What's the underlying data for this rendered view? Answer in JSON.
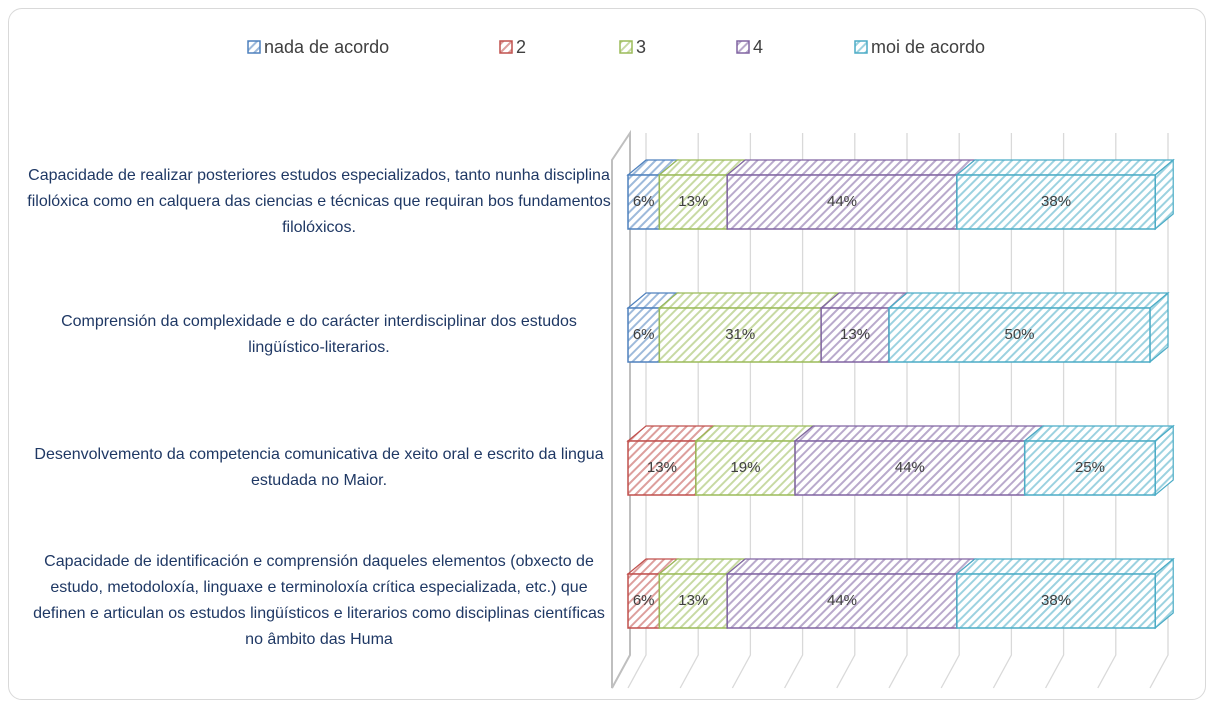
{
  "chart_data": {
    "type": "stacked-bar-3d",
    "orientation": "horizontal",
    "categories": [
      "Capacidade de realizar posteriores estudos especializados, tanto nunha disciplina filolóxica como en calquera das ciencias e técnicas que requiran bos fundamentos filolóxicos.",
      "Comprensión da complexidade e do carácter interdisciplinar dos estudos lingüístico-literarios.",
      "Desenvolvemento da competencia comunicativa de xeito oral e escrito da lingua estudada no Maior.",
      "Capacidade de identificación e comprensión daqueles elementos (obxecto de estudo, metodoloxía, linguaxe e terminoloxía crítica especializada, etc.) que definen e articulan os estudos lingüísticos e literarios como disciplinas científicas no âmbito das Huma"
    ],
    "series": [
      {
        "name": "nada de acordo",
        "color": "#4f81bd",
        "values": [
          6,
          6,
          0,
          0
        ],
        "value_labels": [
          "6%",
          "6%",
          null,
          null
        ]
      },
      {
        "name": "2",
        "color": "#c0504d",
        "values": [
          0,
          0,
          13,
          6
        ],
        "value_labels": [
          null,
          null,
          "13%",
          "6%"
        ]
      },
      {
        "name": "3",
        "color": "#9bbb59",
        "values": [
          13,
          31,
          19,
          13
        ],
        "value_labels": [
          "13%",
          "31%",
          "19%",
          "13%"
        ]
      },
      {
        "name": "4",
        "color": "#8064a2",
        "values": [
          44,
          13,
          44,
          44
        ],
        "value_labels": [
          "44%",
          "13%",
          "44%",
          "44%"
        ]
      },
      {
        "name": "moi de acordo",
        "color": "#4bacc6",
        "values": [
          38,
          50,
          25,
          38
        ],
        "value_labels": [
          "38%",
          "50%",
          "25%",
          "38%"
        ]
      }
    ],
    "xlim": [
      0,
      100
    ],
    "xticks": [
      0,
      10,
      20,
      30,
      40,
      50,
      60,
      70,
      80,
      90,
      100
    ],
    "grid": true,
    "legend": "top"
  }
}
